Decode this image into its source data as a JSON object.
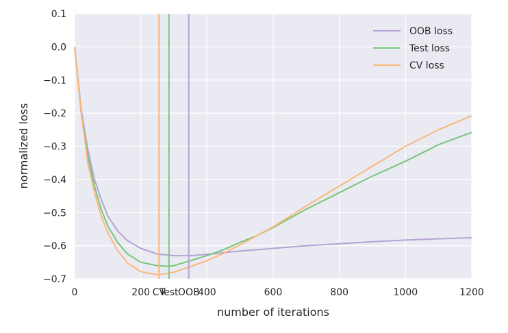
{
  "chart_data": {
    "type": "line",
    "xlabel": "number of iterations",
    "ylabel": "normalized loss",
    "xlim": [
      0,
      1200
    ],
    "ylim": [
      -0.7,
      0.1
    ],
    "xticks": [
      0,
      200,
      400,
      600,
      800,
      1000,
      1200
    ],
    "xtick_labels": [
      "0",
      "200",
      "400",
      "600",
      "800",
      "1000",
      "1200"
    ],
    "yticks": [
      0.1,
      0.0,
      -0.1,
      -0.2,
      -0.3,
      -0.4,
      -0.5,
      -0.6,
      -0.7
    ],
    "ytick_labels": [
      "0.1",
      "0.0",
      "−0.1",
      "−0.2",
      "−0.3",
      "−0.4",
      "−0.5",
      "−0.6",
      "−0.7"
    ],
    "grid": true,
    "legend_position": "top-right",
    "series": [
      {
        "name": "OOB loss",
        "color": "#b3a3d3",
        "x": [
          0,
          20,
          40,
          60,
          80,
          100,
          130,
          160,
          200,
          250,
          300,
          350,
          400,
          500,
          600,
          700,
          800,
          900,
          1000,
          1100,
          1200
        ],
        "y": [
          0.0,
          -0.19,
          -0.31,
          -0.4,
          -0.46,
          -0.51,
          -0.555,
          -0.585,
          -0.608,
          -0.625,
          -0.63,
          -0.63,
          -0.626,
          -0.616,
          -0.608,
          -0.6,
          -0.594,
          -0.588,
          -0.583,
          -0.579,
          -0.576
        ]
      },
      {
        "name": "Test loss",
        "color": "#77c57a",
        "x": [
          0,
          20,
          40,
          60,
          80,
          100,
          130,
          160,
          200,
          250,
          280,
          300,
          350,
          400,
          450,
          500,
          550,
          600,
          700,
          800,
          900,
          1000,
          1100,
          1200
        ],
        "y": [
          0.0,
          -0.2,
          -0.33,
          -0.42,
          -0.49,
          -0.54,
          -0.59,
          -0.625,
          -0.65,
          -0.66,
          -0.662,
          -0.66,
          -0.645,
          -0.63,
          -0.612,
          -0.59,
          -0.57,
          -0.545,
          -0.49,
          -0.44,
          -0.39,
          -0.345,
          -0.295,
          -0.258
        ]
      },
      {
        "name": "CV loss",
        "color": "#fbb67a",
        "x": [
          0,
          20,
          40,
          60,
          80,
          100,
          130,
          160,
          200,
          250,
          300,
          350,
          400,
          450,
          500,
          550,
          600,
          700,
          800,
          900,
          1000,
          1100,
          1200
        ],
        "y": [
          0.0,
          -0.2,
          -0.35,
          -0.44,
          -0.51,
          -0.56,
          -0.615,
          -0.652,
          -0.678,
          -0.688,
          -0.68,
          -0.663,
          -0.645,
          -0.623,
          -0.597,
          -0.57,
          -0.543,
          -0.48,
          -0.42,
          -0.36,
          -0.3,
          -0.25,
          -0.208
        ]
      }
    ],
    "vertical_markers": [
      {
        "label": "CV",
        "x": 255,
        "color": "#fbb67a"
      },
      {
        "label": "Test",
        "x": 285,
        "color": "#77c57a"
      },
      {
        "label": "OOB",
        "x": 345,
        "color": "#b3a3d3"
      }
    ]
  }
}
